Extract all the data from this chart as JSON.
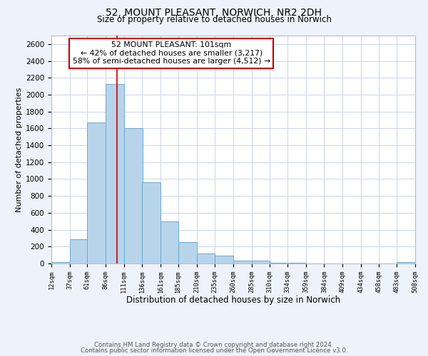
{
  "title": "52, MOUNT PLEASANT, NORWICH, NR2 2DH",
  "subtitle": "Size of property relative to detached houses in Norwich",
  "xlabel": "Distribution of detached houses by size in Norwich",
  "ylabel": "Number of detached properties",
  "bin_edges": [
    12,
    37,
    61,
    86,
    111,
    136,
    161,
    185,
    210,
    235,
    260,
    285,
    310,
    334,
    359,
    384,
    409,
    434,
    458,
    483,
    508
  ],
  "bar_heights": [
    20,
    290,
    1670,
    2130,
    1600,
    960,
    500,
    250,
    120,
    95,
    30,
    30,
    10,
    5,
    3,
    2,
    1,
    1,
    1,
    15
  ],
  "bar_color": "#b8d4ea",
  "bar_edge_color": "#6aaad4",
  "property_size": 101,
  "property_label": "52 MOUNT PLEASANT: 101sqm",
  "smaller_pct": 42,
  "smaller_count": 3217,
  "larger_pct": 58,
  "larger_count": 4512,
  "annotation_box_color": "#ffffff",
  "annotation_box_edge_color": "#cc0000",
  "ylim": [
    0,
    2700
  ],
  "yticks": [
    0,
    200,
    400,
    600,
    800,
    1000,
    1200,
    1400,
    1600,
    1800,
    2000,
    2200,
    2400,
    2600
  ],
  "footnote1": "Contains HM Land Registry data © Crown copyright and database right 2024.",
  "footnote2": "Contains public sector information licensed under the Open Government Licence v3.0.",
  "background_color": "#eef2fa",
  "plot_background_color": "#ffffff",
  "grid_color": "#ccd4e8"
}
